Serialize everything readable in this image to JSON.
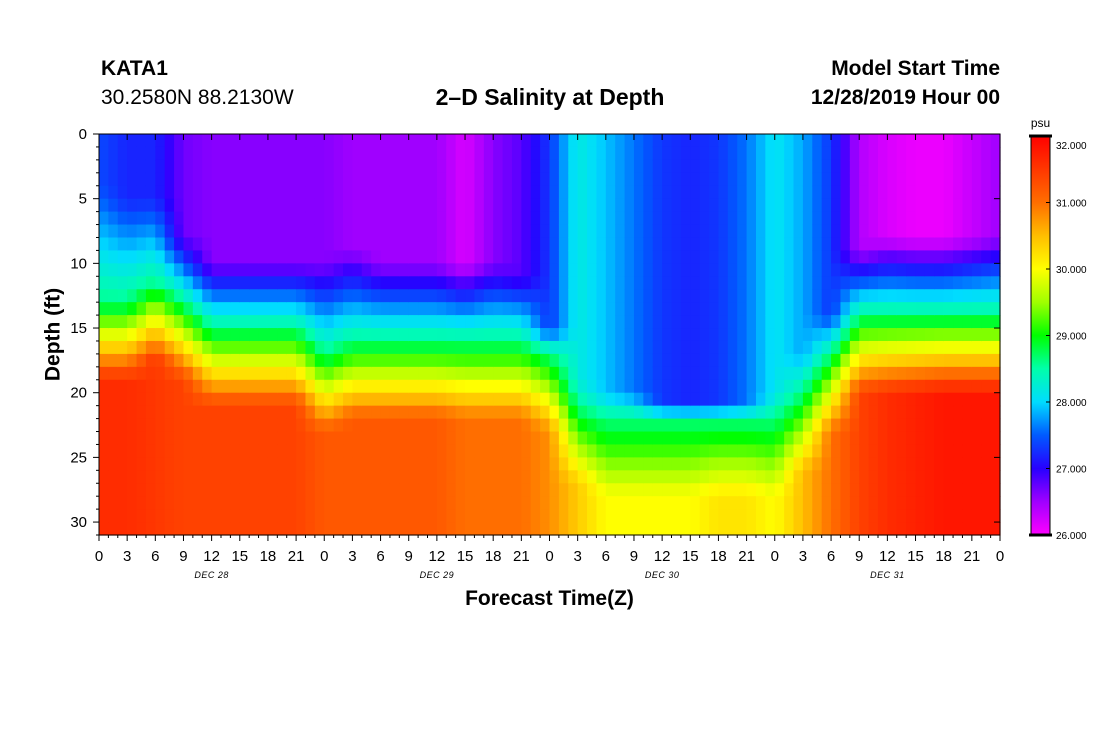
{
  "header": {
    "station": "KATA1",
    "coords": "30.2580N 88.2130W",
    "title": "2–D Salinity at Depth",
    "model_start_label": "Model Start Time",
    "model_start_value": "12/28/2019 Hour 00"
  },
  "chart_data": {
    "type": "heatmap",
    "title": "2–D Salinity at Depth",
    "xlabel": "Forecast Time(Z)",
    "ylabel": "Depth (ft)",
    "x_range_hours": [
      0,
      96
    ],
    "ylim": [
      0,
      31
    ],
    "y_inverted": true,
    "x_tick_labels": [
      "0",
      "3",
      "6",
      "9",
      "12",
      "15",
      "18",
      "21",
      "0",
      "3",
      "6",
      "9",
      "12",
      "15",
      "18",
      "21",
      "0",
      "3",
      "6",
      "9",
      "12",
      "15",
      "18",
      "21",
      "0",
      "3",
      "6",
      "9",
      "12",
      "15",
      "18",
      "21",
      "0"
    ],
    "y_ticks": [
      0,
      5,
      10,
      15,
      20,
      25,
      30
    ],
    "day_labels": [
      {
        "label": "DEC 28",
        "hour": 12
      },
      {
        "label": "DEC 29",
        "hour": 36
      },
      {
        "label": "DEC 30",
        "hour": 60
      },
      {
        "label": "DEC 31",
        "hour": 84
      }
    ],
    "colorbar": {
      "unit": "psu",
      "min": 26.0,
      "max": 32.0,
      "tick_labels": [
        "32.000",
        "31.000",
        "30.000",
        "29.000",
        "28.000",
        "27.000",
        "26.000"
      ],
      "tick_values": [
        32,
        31,
        30,
        29,
        28,
        27,
        26
      ]
    },
    "profile_hours": [
      0,
      3,
      6,
      9,
      12,
      15,
      18,
      21,
      24,
      27,
      30,
      33,
      36,
      39,
      42,
      45,
      48,
      51,
      54,
      57,
      60,
      63,
      66,
      69,
      72,
      75,
      78,
      81,
      84,
      87,
      90,
      93,
      96
    ],
    "profiles": [
      {
        "top": 27.4,
        "mixed": 4,
        "halo": 13,
        "bot": 31.6
      },
      {
        "top": 27.2,
        "mixed": 5,
        "halo": 13,
        "bot": 31.6
      },
      {
        "top": 27.2,
        "mixed": 5,
        "halo": 11.5,
        "bot": 31.5
      },
      {
        "top": 26.7,
        "mixed": 8,
        "halo": 13,
        "bot": 31.4
      },
      {
        "top": 26.6,
        "mixed": 10,
        "halo": 15,
        "bot": 31.4
      },
      {
        "top": 26.6,
        "mixed": 10,
        "halo": 15,
        "bot": 31.4
      },
      {
        "top": 26.6,
        "mixed": 10,
        "halo": 15,
        "bot": 31.4
      },
      {
        "top": 26.6,
        "mixed": 10,
        "halo": 15,
        "bot": 31.4
      },
      {
        "top": 26.6,
        "mixed": 10,
        "halo": 17,
        "bot": 31.2
      },
      {
        "top": 26.5,
        "mixed": 9,
        "halo": 16,
        "bot": 31.2
      },
      {
        "top": 26.5,
        "mixed": 10,
        "halo": 16,
        "bot": 31.2
      },
      {
        "top": 26.5,
        "mixed": 10,
        "halo": 16,
        "bot": 31.2
      },
      {
        "top": 26.5,
        "mixed": 10,
        "halo": 16,
        "bot": 31.2
      },
      {
        "top": 26.2,
        "mixed": 10,
        "halo": 16,
        "bot": 31.0
      },
      {
        "top": 26.6,
        "mixed": 10,
        "halo": 16,
        "bot": 31.0
      },
      {
        "top": 26.8,
        "mixed": 11,
        "halo": 16,
        "bot": 31.0
      },
      {
        "top": 27.3,
        "mixed": 15,
        "halo": 17,
        "bot": 30.8
      },
      {
        "top": 28.2,
        "mixed": 19,
        "halo": 21,
        "bot": 30.4
      },
      {
        "top": 27.9,
        "mixed": 20,
        "halo": 22,
        "bot": 30.0
      },
      {
        "top": 27.6,
        "mixed": 20,
        "halo": 22,
        "bot": 30.0
      },
      {
        "top": 27.3,
        "mixed": 21,
        "halo": 22,
        "bot": 30.0
      },
      {
        "top": 27.2,
        "mixed": 21,
        "halo": 22,
        "bot": 30.0
      },
      {
        "top": 27.3,
        "mixed": 21,
        "halo": 22,
        "bot": 30.2
      },
      {
        "top": 27.6,
        "mixed": 21,
        "halo": 22,
        "bot": 30.2
      },
      {
        "top": 28.1,
        "mixed": 20,
        "halo": 22,
        "bot": 30.0
      },
      {
        "top": 27.8,
        "mixed": 17,
        "halo": 20,
        "bot": 30.5
      },
      {
        "top": 27.3,
        "mixed": 14,
        "halo": 17,
        "bot": 31.0
      },
      {
        "top": 26.4,
        "mixed": 9,
        "halo": 14,
        "bot": 31.4
      },
      {
        "top": 26.2,
        "mixed": 8,
        "halo": 14,
        "bot": 31.6
      },
      {
        "top": 26.1,
        "mixed": 8,
        "halo": 14,
        "bot": 31.7
      },
      {
        "top": 26.1,
        "mixed": 8,
        "halo": 14,
        "bot": 31.8
      },
      {
        "top": 26.3,
        "mixed": 8,
        "halo": 14,
        "bot": 31.8
      },
      {
        "top": 26.5,
        "mixed": 8,
        "halo": 14,
        "bot": 31.8
      }
    ]
  }
}
